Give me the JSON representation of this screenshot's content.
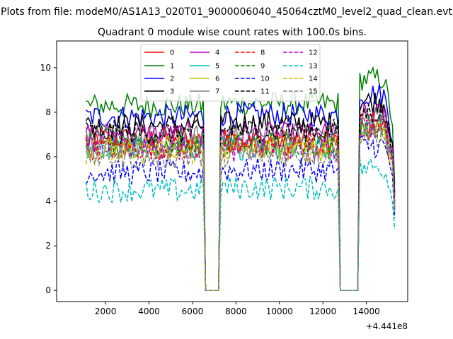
{
  "figure": {
    "suptitle": "Plots from file: modeM0/AS1A13_020T01_9000006040_45064cztM0_level2_quad_clean.evt"
  },
  "chart_data": {
    "type": "line",
    "title": "Quadrant 0 module wise count rates with 100.0s bins.",
    "xlabel": "",
    "ylabel": "",
    "x_offset_label": "+4.441e8",
    "xlim": [
      -250,
      15900
    ],
    "ylim": [
      -0.5,
      11.2
    ],
    "xticks": [
      2000,
      4000,
      6000,
      8000,
      10000,
      12000,
      14000
    ],
    "xtick_labels": [
      "2000",
      "4000",
      "6000",
      "8000",
      "10000",
      "12000",
      "14000"
    ],
    "yticks": [
      0,
      2,
      4,
      6,
      8,
      10
    ],
    "ytick_labels": [
      "0",
      "2",
      "4",
      "6",
      "8",
      "10"
    ],
    "grid": false,
    "legend_position": "top-center",
    "legend_columns": 4,
    "segments": [
      {
        "x_start": 1100,
        "x_end": 6500,
        "active": true
      },
      {
        "x_start": 6600,
        "x_end": 7200,
        "active": false
      },
      {
        "x_start": 7300,
        "x_end": 12700,
        "active": true
      },
      {
        "x_start": 12800,
        "x_end": 13600,
        "active": false
      },
      {
        "x_start": 13700,
        "x_end": 15300,
        "active": true
      }
    ],
    "series": [
      {
        "name": "0",
        "color": "#ff0000",
        "dash": "solid",
        "levels": [
          6.8,
          6.7,
          7.3
        ]
      },
      {
        "name": "1",
        "color": "#008000",
        "dash": "solid",
        "levels": [
          8.3,
          8.4,
          9.5
        ]
      },
      {
        "name": "2",
        "color": "#0000ff",
        "dash": "solid",
        "levels": [
          7.8,
          7.9,
          8.8
        ]
      },
      {
        "name": "3",
        "color": "#000000",
        "dash": "solid",
        "levels": [
          7.4,
          7.5,
          8.5
        ]
      },
      {
        "name": "4",
        "color": "#bf00bf",
        "dash": "solid",
        "levels": [
          7.0,
          7.0,
          7.9
        ]
      },
      {
        "name": "5",
        "color": "#00bfbf",
        "dash": "solid",
        "levels": [
          6.4,
          6.4,
          7.4
        ]
      },
      {
        "name": "6",
        "color": "#bfbf00",
        "dash": "solid",
        "levels": [
          6.5,
          6.5,
          7.4
        ]
      },
      {
        "name": "7",
        "color": "#808080",
        "dash": "solid",
        "levels": [
          6.9,
          7.0,
          7.8
        ]
      },
      {
        "name": "8",
        "color": "#ff0000",
        "dash": "dashed",
        "levels": [
          6.4,
          6.5,
          7.5
        ]
      },
      {
        "name": "9",
        "color": "#008000",
        "dash": "dashed",
        "levels": [
          6.5,
          6.6,
          7.4
        ]
      },
      {
        "name": "10",
        "color": "#0000ff",
        "dash": "dashed",
        "levels": [
          5.3,
          5.4,
          6.5
        ]
      },
      {
        "name": "11",
        "color": "#000000",
        "dash": "dashed",
        "levels": [
          7.1,
          7.2,
          8.0
        ]
      },
      {
        "name": "12",
        "color": "#bf00bf",
        "dash": "dashed",
        "levels": [
          6.4,
          6.3,
          7.3
        ]
      },
      {
        "name": "13",
        "color": "#00bfbf",
        "dash": "dashed",
        "levels": [
          4.5,
          4.6,
          5.5
        ]
      },
      {
        "name": "14",
        "color": "#bfbf00",
        "dash": "dashed",
        "levels": [
          6.2,
          6.3,
          7.2
        ]
      },
      {
        "name": "15",
        "color": "#808080",
        "dash": "dashed",
        "levels": [
          6.0,
          6.1,
          7.0
        ]
      }
    ]
  }
}
